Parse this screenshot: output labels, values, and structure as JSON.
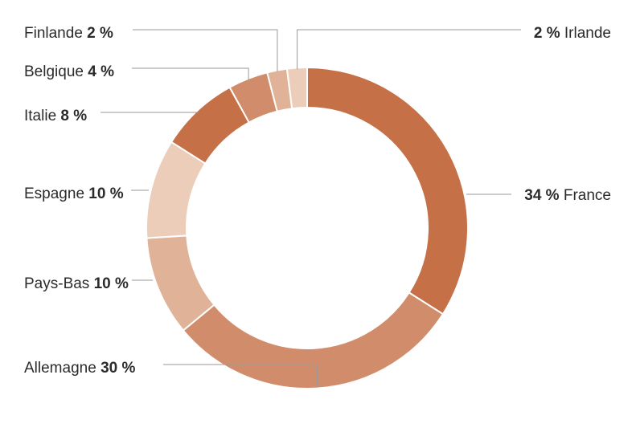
{
  "chart_data": {
    "type": "pie",
    "donut": true,
    "slices": [
      {
        "label": "France",
        "value": 34,
        "display": "34 %",
        "color": "#c57046",
        "label_side": "right",
        "value_first": true
      },
      {
        "label": "Allemagne",
        "value": 30,
        "display": "30 %",
        "color": "#d18d6b",
        "label_side": "left",
        "value_first": false
      },
      {
        "label": "Pays-Bas",
        "value": 10,
        "display": "10 %",
        "color": "#e0b398",
        "label_side": "left",
        "value_first": false
      },
      {
        "label": "Espagne",
        "value": 10,
        "display": "10 %",
        "color": "#eccdb9",
        "label_side": "left",
        "value_first": false
      },
      {
        "label": "Italie",
        "value": 8,
        "display": "8 %",
        "color": "#c57046",
        "label_side": "left",
        "value_first": false
      },
      {
        "label": "Belgique",
        "value": 4,
        "display": "4 %",
        "color": "#d18d6b",
        "label_side": "left",
        "value_first": false
      },
      {
        "label": "Finlande",
        "value": 2,
        "display": "2 %",
        "color": "#e0b398",
        "label_side": "left",
        "value_first": false
      },
      {
        "label": "Irlande",
        "value": 2,
        "display": "2 %",
        "color": "#eccdb9",
        "label_side": "right",
        "value_first": true
      }
    ],
    "start": "top, clockwise",
    "leader_color": "#9a9a9a"
  }
}
